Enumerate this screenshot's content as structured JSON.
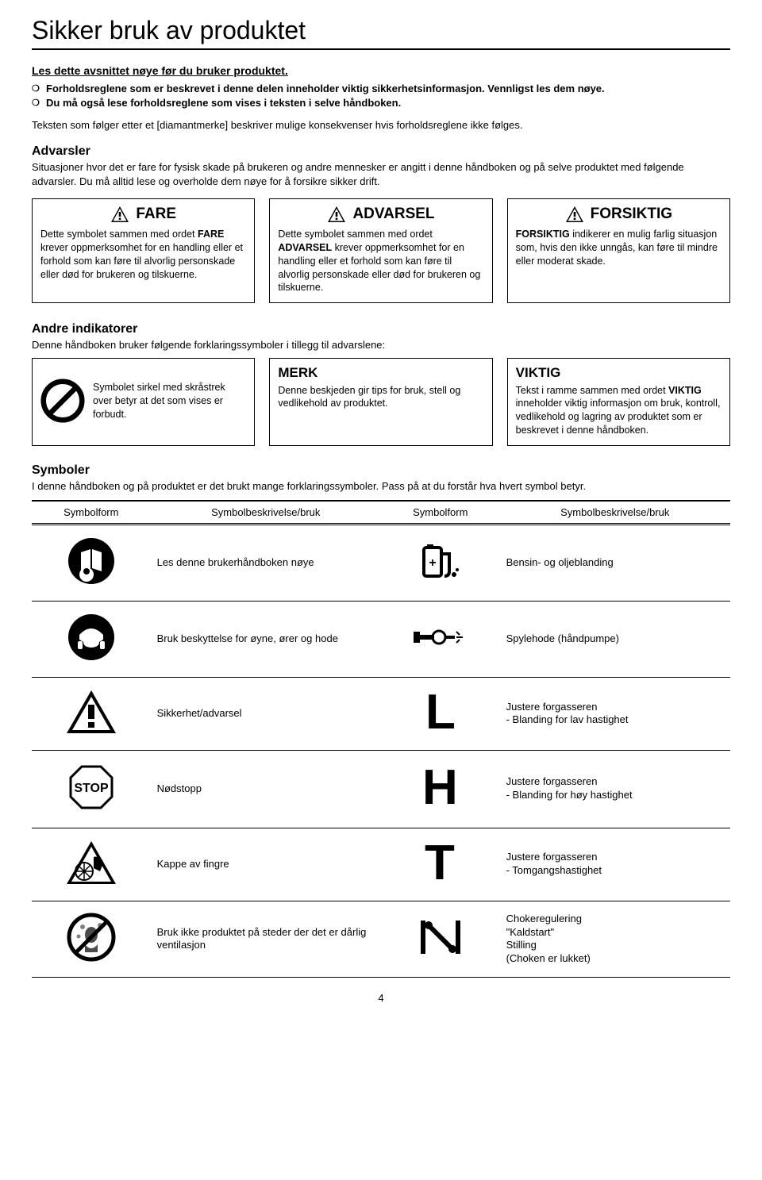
{
  "title": "Sikker bruk av produktet",
  "intro": {
    "heading": "Les dette avsnittet nøye før du bruker produktet.",
    "bullet1": "Forholdsreglene som er beskrevet i denne delen inneholder viktig sikkerhetsinformasjon. Vennligst les dem nøye.",
    "bullet2": "Du må også lese forholdsreglene som vises i teksten i selve håndboken.",
    "follow": "Teksten som følger etter et [diamantmerke] beskriver mulige konsekvenser hvis forholdsreglene ikke følges."
  },
  "advarsler": {
    "heading": "Advarsler",
    "paragraph": "Situasjoner hvor det er fare for fysisk skade på brukeren og andre mennesker er angitt i denne håndboken og på selve produktet med følgende advarsler. Du må alltid lese og overholde dem nøye for å forsikre sikker drift."
  },
  "warn": {
    "fare": {
      "title": "FARE",
      "body_pre": "Dette symbolet sammen med ordet ",
      "body_bold": "FARE",
      "body_post": " krever oppmerksomhet for en handling eller et forhold som kan føre til alvorlig personskade eller død for brukeren og tilskuerne."
    },
    "advarsel": {
      "title": "ADVARSEL",
      "body_pre": "Dette symbolet sammen med ordet ",
      "body_bold": "ADVARSEL",
      "body_post": " krever oppmerksomhet for en handling eller et forhold som kan føre til alvorlig personskade eller død for brukeren og tilskuerne."
    },
    "forsiktig": {
      "title": "FORSIKTIG",
      "body_pre": "",
      "body_bold": "FORSIKTIG",
      "body_post": " indikerer en mulig farlig situasjon som, hvis den ikke unngås, kan føre til mindre eller moderat skade."
    }
  },
  "indicators": {
    "heading": "Andre indikatorer",
    "paragraph": "Denne håndboken bruker følgende forklaringssymboler i tillegg til advarslene:",
    "prohibit": "Symbolet sirkel med skråstrek over betyr at det som vises er forbudt.",
    "merk": {
      "title": "MERK",
      "body": "Denne beskjeden gir tips for bruk, stell og vedlikehold av produktet."
    },
    "viktig": {
      "title": "VIKTIG",
      "body_pre": "Tekst i ramme sammen med ordet ",
      "body_bold": "VIKTIG",
      "body_post": " inneholder viktig informasjon om bruk, kontroll, vedlikehold og lagring av produktet som er beskrevet i denne håndboken."
    }
  },
  "symbols": {
    "heading": "Symboler",
    "paragraph": "I denne håndboken og på produktet er det brukt mange forklaringssymboler. Pass på at du forstår hva hvert symbol betyr.",
    "headers": {
      "form": "Symbolform",
      "desc": "Symbolbeskrivelse/bruk"
    },
    "rows": [
      {
        "a": "Les denne brukerhåndboken nøye",
        "b": "Bensin- og oljeblanding"
      },
      {
        "a": "Bruk beskyttelse for øyne, ører og hode",
        "b": "Spylehode (håndpumpe)"
      },
      {
        "a": "Sikkerhet/advarsel",
        "b": "Justere forgasseren\n - Blanding for lav hastighet"
      },
      {
        "a": "Nødstopp",
        "b": "Justere forgasseren\n - Blanding for høy hastighet"
      },
      {
        "a": "Kappe av fingre",
        "b": "Justere forgasseren\n - Tomgangshastighet"
      },
      {
        "a": "Bruk ikke produktet på steder der det er dårlig ventilasjon",
        "b": "Chokeregulering\n\"Kaldstart\"\nStilling\n(Choken er lukket)"
      }
    ]
  },
  "page_number": "4"
}
